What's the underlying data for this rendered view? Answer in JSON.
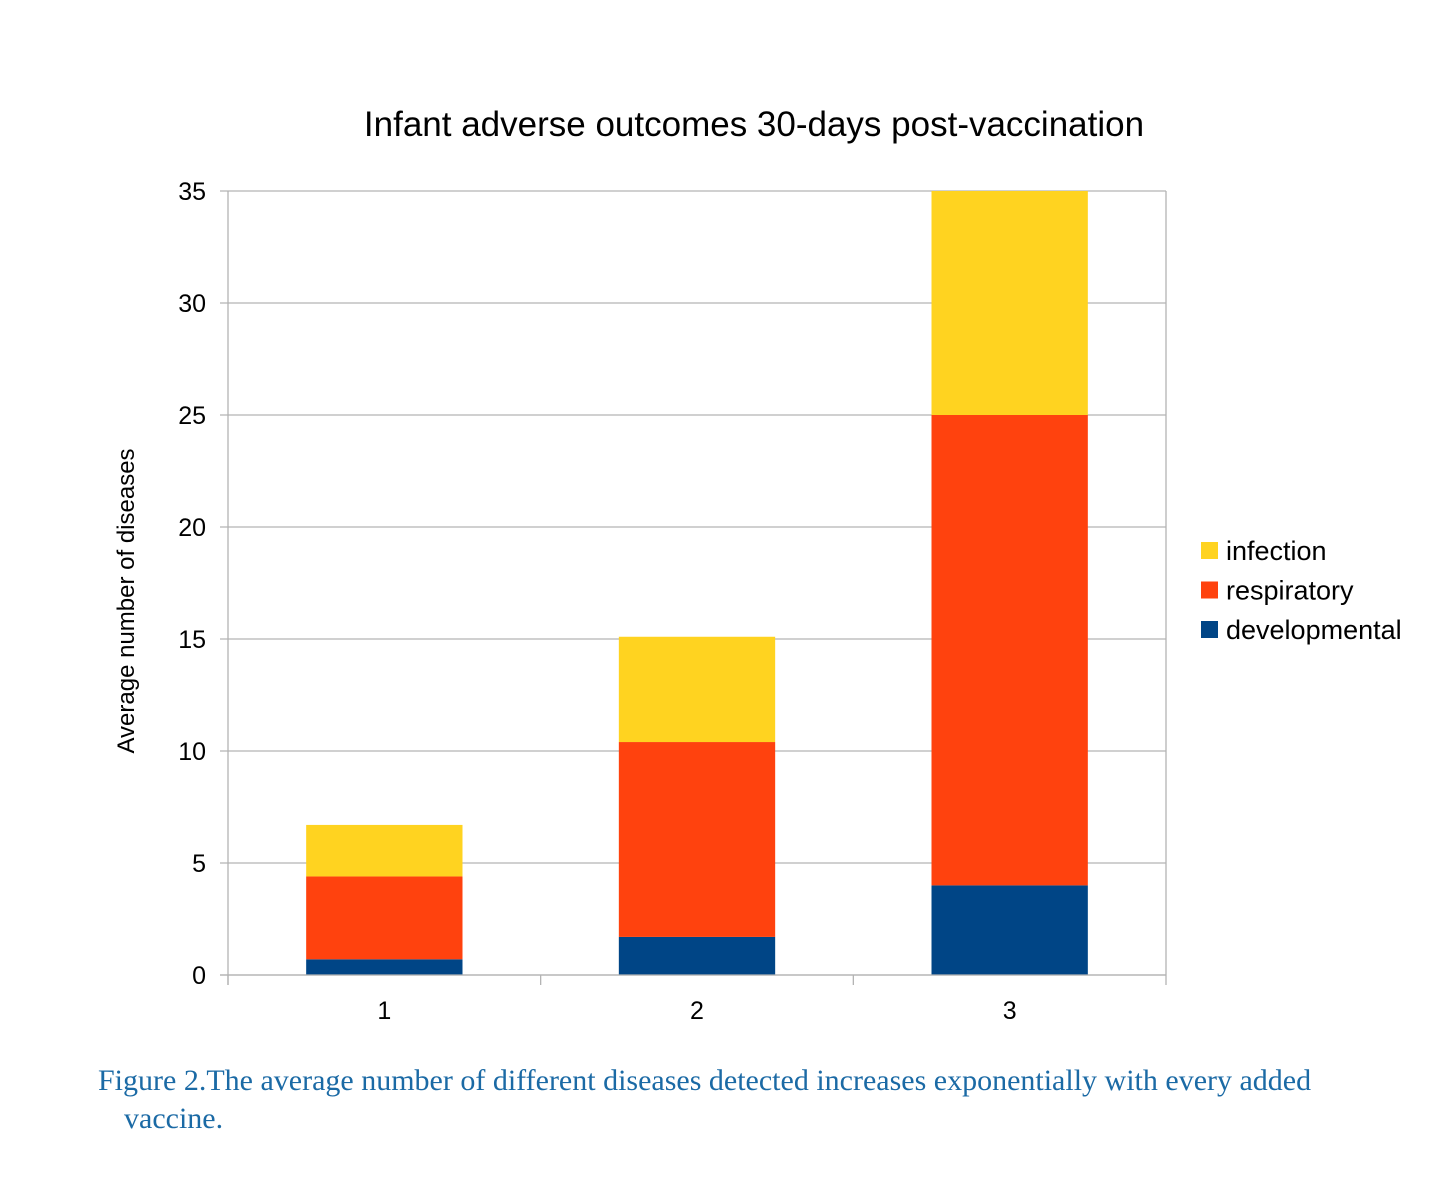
{
  "chart_data": {
    "type": "bar",
    "stacked": true,
    "title": "Infant adverse outcomes 30-days post-vaccination",
    "xlabel": "",
    "ylabel": "Average number of diseases",
    "categories": [
      "1",
      "2",
      "3"
    ],
    "yticks": [
      "0",
      "5",
      "10",
      "15",
      "20",
      "25",
      "30",
      "35"
    ],
    "ylim": [
      0,
      35
    ],
    "grid": true,
    "legend_position": "right",
    "series": [
      {
        "name": "developmental",
        "color": "#004586",
        "values": [
          0.7,
          1.7,
          4.0
        ]
      },
      {
        "name": "respiratory",
        "color": "#ff420e",
        "values": [
          3.7,
          8.7,
          21.0
        ]
      },
      {
        "name": "infection",
        "color": "#ffd320",
        "values": [
          2.3,
          4.7,
          10.0
        ]
      }
    ],
    "legend_order": [
      "infection",
      "respiratory",
      "developmental"
    ]
  },
  "caption": "Figure 2.The average number of different diseases detected increases exponentially with every added vaccine."
}
